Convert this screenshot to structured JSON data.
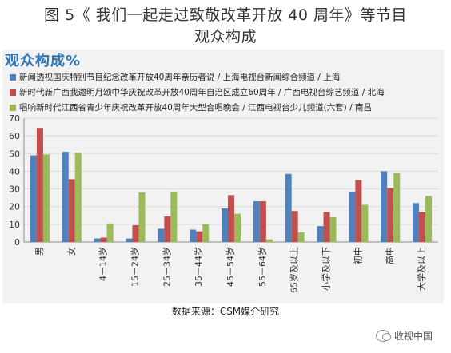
{
  "figure_title_line1": "图 5《 我们一起走过致敬改革开放 40 周年》等节目",
  "figure_title_line2": "观众构成",
  "source": "数据来源：CSM媒介研究",
  "watermark": "收视中国",
  "chart_data": {
    "type": "bar",
    "title": "观众构成%",
    "categories": [
      "男",
      "女",
      "4－14岁",
      "15－24岁",
      "25－34岁",
      "35－44岁",
      "45－54岁",
      "55－64岁",
      "65岁及以上",
      "小学及以下",
      "初中",
      "高中",
      "大学及以上"
    ],
    "series": [
      {
        "name": "新闻透视国庆特别节目纪念改革开放40周年亲历者说 / 上海电视台新闻综合频道 / 上海",
        "color": "#4f81bd",
        "values": [
          49,
          51,
          2,
          2,
          7.5,
          7,
          19,
          23,
          38.5,
          9,
          28.5,
          40,
          22
        ]
      },
      {
        "name": "新时代新广西我邀明月颂中华庆祝改革开放40周年自治区成立60周年 / 广西电视台综艺频道 / 北海",
        "color": "#c0504d",
        "values": [
          64.5,
          35.5,
          2.5,
          9.5,
          14.5,
          6,
          26.5,
          23,
          17.5,
          17,
          35,
          30.5,
          17
        ]
      },
      {
        "name": "唱响新时代江西省青少年庆祝改革开放40周年大型合唱晚会 / 江西电视台少儿频道(六套) / 南昌",
        "color": "#9bbb59",
        "values": [
          49.5,
          50.5,
          10.5,
          28,
          28.5,
          10,
          16,
          1.5,
          5.5,
          14,
          21,
          39,
          26
        ]
      }
    ],
    "ylim": [
      0,
      70
    ],
    "yticks": [
      0,
      10,
      20,
      30,
      40,
      50,
      60,
      70
    ],
    "grid": true,
    "legend_position": "top"
  }
}
